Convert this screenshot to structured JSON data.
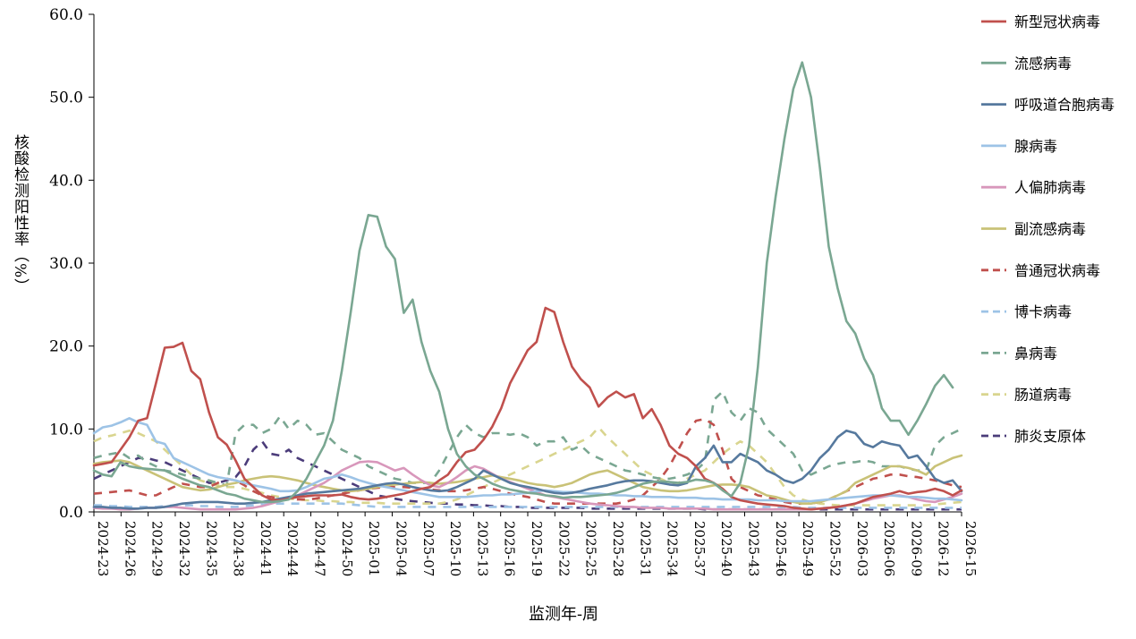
{
  "chart_data": {
    "type": "line",
    "xlabel": "监测年-周",
    "ylabel": "核酸检测阳性率（%）",
    "ylim": [
      0,
      60
    ],
    "yticks": [
      "0.0",
      "10.0",
      "20.0",
      "30.0",
      "40.0",
      "50.0",
      "60.0"
    ],
    "grid": false,
    "legend_position": "right",
    "x_tick_labels": [
      "2024-23",
      "2024-26",
      "2024-29",
      "2024-32",
      "2024-35",
      "2024-38",
      "2024-41",
      "2024-44",
      "2024-47",
      "2024-50",
      "2025-01",
      "2025-04",
      "2025-07",
      "2025-10",
      "2025-13",
      "2025-16",
      "2025-19",
      "2025-22",
      "2025-25",
      "2025-28",
      "2025-31",
      "2025-34",
      "2025-37",
      "2025-40",
      "2025-43",
      "2025-46",
      "2025-49",
      "2025-52",
      "2026-03",
      "2026-06",
      "2026-09",
      "2026-12",
      "2026-15"
    ],
    "series": [
      {
        "name": "新型冠状病毒",
        "color": "#c0504d",
        "dash": false,
        "values": [
          5.6,
          5.8,
          6,
          7.5,
          9,
          11,
          11.3,
          15.5,
          19.8,
          19.9,
          20.4,
          17,
          16,
          12,
          9,
          8.1,
          6.2,
          4,
          3,
          2,
          1.5,
          1.4,
          1.6,
          1.8,
          1.9,
          2,
          2,
          2,
          2.1,
          1.8,
          1.6,
          1.5,
          1.6,
          1.8,
          2,
          2.2,
          2.5,
          2.8,
          3,
          3.8,
          4.5,
          6,
          7.2,
          7.5,
          8.7,
          10.3,
          12.5,
          15.5,
          17.5,
          19.5,
          20.5,
          24.6,
          24.1,
          20.5,
          17.5,
          16,
          15,
          12.7,
          13.8,
          14.5,
          13.8,
          14.2,
          11.3,
          12.4,
          10.5,
          8,
          7,
          6.5,
          5.5,
          4,
          3.5,
          2.8,
          1.8,
          1.4,
          1.2,
          1,
          0.9,
          0.8,
          0.7,
          0.5,
          0.4,
          0.3,
          0.4,
          0.5,
          0.6,
          0.8,
          1,
          1.4,
          1.8,
          2,
          2.2,
          2.5,
          2.2,
          2.4,
          2.5,
          2.8,
          2.5,
          2,
          2.6
        ]
      },
      {
        "name": "流感病毒",
        "color": "#7aa792",
        "dash": false,
        "values": [
          5,
          4.5,
          4.3,
          6,
          5.5,
          5.3,
          5.2,
          5.1,
          5,
          4.5,
          4,
          3.6,
          3.2,
          3,
          2.6,
          2.2,
          2,
          1.6,
          1.4,
          1.2,
          1.2,
          1.3,
          1.5,
          2.5,
          4,
          6,
          8,
          11,
          17,
          24,
          31.5,
          35.8,
          35.6,
          32,
          30.5,
          24,
          25.6,
          20.5,
          17,
          14.5,
          10,
          7,
          5.5,
          4.5,
          4,
          3.4,
          3,
          2.7,
          2.5,
          2.3,
          2.2,
          2,
          1.9,
          1.7,
          1.8,
          1.8,
          1.9,
          2,
          2.1,
          2.3,
          2.6,
          3,
          3.4,
          3.6,
          3.7,
          3.6,
          3.5,
          3.6,
          3.9,
          3.8,
          3.5,
          2.6,
          1.9,
          3.5,
          8,
          17.5,
          30,
          38,
          45,
          51,
          54.2,
          50,
          41.5,
          32,
          27,
          23,
          21.5,
          18.5,
          16.5,
          12.5,
          11,
          11,
          9.3,
          11,
          13,
          15.2,
          16.5,
          15
        ]
      },
      {
        "name": "呼吸道合胞病毒",
        "color": "#56799e",
        "dash": false,
        "values": [
          0.6,
          0.6,
          0.5,
          0.5,
          0.4,
          0.4,
          0.5,
          0.5,
          0.6,
          0.8,
          1,
          1.1,
          1.2,
          1.2,
          1.2,
          1.1,
          1,
          1,
          1.1,
          1.2,
          1.4,
          1.6,
          1.8,
          2,
          2.2,
          2.3,
          2.4,
          2.5,
          2.6,
          2.7,
          2.8,
          3,
          3.2,
          3.4,
          3.5,
          3.3,
          3,
          2.8,
          2.6,
          2.5,
          2.6,
          3,
          3.5,
          4,
          5,
          4.5,
          4,
          3.5,
          3.2,
          3,
          2.8,
          2.5,
          2.3,
          2.2,
          2.3,
          2.5,
          2.8,
          3,
          3.2,
          3.5,
          3.7,
          3.8,
          3.8,
          3.7,
          3.5,
          3.3,
          3.2,
          3.5,
          5.5,
          6.5,
          8,
          6,
          6,
          7,
          6.5,
          6,
          5,
          4.5,
          3.8,
          3.5,
          4,
          5,
          6.5,
          7.5,
          9,
          9.8,
          9.5,
          8.2,
          7.8,
          8.5,
          8.2,
          8,
          6.5,
          6.8,
          5.5,
          4,
          3.5,
          3.8,
          2.5
        ]
      },
      {
        "name": "腺病毒",
        "color": "#9dc3e6",
        "dash": false,
        "values": [
          9.5,
          10.2,
          10.4,
          10.8,
          11.3,
          10.8,
          10.5,
          8.5,
          8.2,
          6.5,
          6,
          5.5,
          5,
          4.5,
          4.2,
          4,
          3.8,
          3.5,
          3.2,
          3,
          2.8,
          2.5,
          2.5,
          2.6,
          3,
          3.5,
          4,
          4.2,
          4.5,
          4.2,
          3.8,
          3.5,
          3.2,
          3,
          2.8,
          2.6,
          2.4,
          2.2,
          2,
          1.8,
          1.8,
          1.8,
          1.8,
          1.9,
          2,
          2,
          2.1,
          2.1,
          2.2,
          2.3,
          2.5,
          2.6,
          2.5,
          2.4,
          2.4,
          2.3,
          2.2,
          2.2,
          2.1,
          2,
          2,
          1.9,
          1.9,
          1.8,
          1.8,
          1.8,
          1.7,
          1.7,
          1.7,
          1.6,
          1.6,
          1.5,
          1.5,
          1.5,
          1.5,
          1.4,
          1.4,
          1.4,
          1.3,
          1.3,
          1.3,
          1.3,
          1.4,
          1.5,
          1.6,
          1.7,
          1.8,
          1.9,
          2,
          2,
          2,
          1.9,
          1.8,
          1.8,
          1.7,
          1.6,
          1.6,
          1.5,
          1.4
        ]
      },
      {
        "name": "人偏肺病毒",
        "color": "#d897bb",
        "dash": false,
        "values": [
          0.5,
          0.4,
          0.4,
          0.3,
          0.3,
          0.4,
          0.5,
          0.5,
          0.6,
          0.6,
          0.5,
          0.4,
          0.3,
          0.3,
          0.3,
          0.3,
          0.3,
          0.4,
          0.5,
          0.7,
          1,
          1.3,
          1.6,
          2,
          2.5,
          3,
          3.5,
          4.2,
          5,
          5.5,
          6,
          6.1,
          6,
          5.5,
          5,
          5.3,
          4.5,
          3.8,
          3.2,
          3,
          3.5,
          4.2,
          5,
          5.5,
          5.2,
          4.6,
          4,
          3.6,
          3.2,
          2.8,
          2.4,
          2,
          1.8,
          1.6,
          1.4,
          1.2,
          1,
          0.9,
          0.8,
          0.7,
          0.6,
          0.6,
          0.5,
          0.5,
          0.5,
          0.4,
          0.4,
          0.4,
          0.4,
          0.4,
          0.3,
          0.3,
          0.3,
          0.3,
          0.3,
          0.3,
          0.3,
          0.3,
          0.3,
          0.3,
          0.3,
          0.3,
          0.4,
          0.5,
          0.6,
          0.8,
          1,
          1.3,
          1.6,
          1.8,
          2,
          2,
          1.8,
          1.5,
          1.3,
          1.2,
          1.5,
          1.8,
          2.2
        ]
      },
      {
        "name": "副流感病毒",
        "color": "#c9c277",
        "dash": false,
        "values": [
          5.8,
          6,
          6.1,
          6.2,
          6,
          5.5,
          5,
          4.5,
          4,
          3.5,
          3,
          2.8,
          2.6,
          2.7,
          3,
          3.3,
          3.5,
          3.8,
          4,
          4.2,
          4.3,
          4.2,
          4,
          3.8,
          3.5,
          3.2,
          3,
          2.8,
          2.6,
          2.5,
          2.6,
          2.8,
          3,
          3.2,
          3.3,
          3.4,
          3.5,
          3.6,
          3.5,
          3.4,
          3.5,
          3.6,
          3.8,
          4,
          4.2,
          4.4,
          4.2,
          4,
          3.8,
          3.5,
          3.3,
          3.2,
          3,
          3.2,
          3.5,
          4,
          4.5,
          4.8,
          5,
          4.5,
          4,
          3.5,
          3,
          2.8,
          2.6,
          2.5,
          2.5,
          2.6,
          2.8,
          3,
          3.2,
          3.3,
          3.3,
          3.2,
          3,
          2.5,
          2,
          1.8,
          1.5,
          1.2,
          1,
          1,
          1.2,
          1.5,
          2,
          2.5,
          3.5,
          4,
          4.5,
          5,
          5.5,
          5.5,
          5.3,
          5,
          4.5,
          5.5,
          6,
          6.5,
          6.8
        ]
      },
      {
        "name": "普通冠状病毒",
        "color": "#c0504d",
        "dash": true,
        "values": [
          2.2,
          2.3,
          2.4,
          2.5,
          2.6,
          2.3,
          2,
          2,
          2.5,
          3,
          3.4,
          3.2,
          3,
          3,
          3.5,
          4,
          3.8,
          3.2,
          2.5,
          2,
          1.8,
          1.6,
          1.6,
          1.5,
          1.5,
          1.6,
          1.8,
          2,
          2.2,
          2.4,
          2.6,
          2.8,
          2.9,
          3,
          3,
          3,
          2.9,
          2.8,
          2.7,
          2.6,
          2.5,
          2.5,
          2.6,
          2.8,
          3,
          2.8,
          2.5,
          2.2,
          2,
          1.8,
          1.5,
          1.2,
          1,
          1,
          1,
          1,
          1,
          1,
          1,
          1,
          1.2,
          1.5,
          2,
          3,
          4,
          5.5,
          7.5,
          9.5,
          11,
          11.2,
          10.5,
          7.5,
          4,
          3,
          2.5,
          2,
          1.8,
          1.5,
          1.2,
          1,
          1,
          1,
          1.2,
          1.5,
          2,
          2.5,
          3,
          3.5,
          4,
          4.2,
          4.5,
          4.5,
          4.3,
          4.2,
          4,
          3.8,
          3.5,
          3.2,
          3
        ]
      },
      {
        "name": "博卡病毒",
        "color": "#9dc3e6",
        "dash": true,
        "values": [
          0.8,
          0.8,
          0.7,
          0.7,
          0.6,
          0.6,
          0.6,
          0.6,
          0.7,
          0.8,
          0.8,
          0.8,
          0.7,
          0.7,
          0.6,
          0.6,
          0.6,
          0.7,
          0.8,
          0.9,
          1,
          1,
          1,
          1,
          1,
          1,
          1,
          1,
          1,
          0.9,
          0.8,
          0.7,
          0.6,
          0.6,
          0.6,
          0.6,
          0.6,
          0.6,
          0.6,
          0.6,
          0.6,
          0.6,
          0.6,
          0.6,
          0.6,
          0.6,
          0.6,
          0.6,
          0.6,
          0.6,
          0.6,
          0.6,
          0.6,
          0.6,
          0.6,
          0.6,
          0.6,
          0.6,
          0.6,
          0.6,
          0.6,
          0.6,
          0.6,
          0.6,
          0.6,
          0.6,
          0.6,
          0.6,
          0.6,
          0.6,
          0.6,
          0.6,
          0.6,
          0.6,
          0.6,
          0.6,
          0.6,
          0.6,
          0.6,
          0.6,
          0.5,
          0.5,
          0.5,
          0.5,
          0.5,
          0.5,
          0.5,
          0.5,
          0.5,
          0.5,
          0.5,
          0.5,
          0.5,
          0.5,
          0.5,
          0.5,
          0.5,
          0.5,
          0.5
        ]
      },
      {
        "name": "鼻病毒",
        "color": "#7aa792",
        "dash": true,
        "values": [
          6.5,
          6.8,
          7,
          7.2,
          6.5,
          6.8,
          6,
          5.5,
          5,
          4.8,
          4.5,
          4.2,
          4,
          3.8,
          3.5,
          3.2,
          9.5,
          10.5,
          10.5,
          9.5,
          10,
          11.5,
          10,
          11,
          10.5,
          9.3,
          9.5,
          8.5,
          7.5,
          7,
          6.5,
          5.5,
          5,
          4.5,
          4,
          3.8,
          3.5,
          3.5,
          3.5,
          5,
          7,
          9,
          10.5,
          9.5,
          9,
          9.5,
          9.5,
          9.3,
          9.5,
          9,
          8,
          8.5,
          8.5,
          9,
          7.5,
          8,
          7,
          6.5,
          6,
          5.5,
          5,
          4.8,
          4.5,
          4.2,
          4,
          4,
          4.2,
          4.5,
          5,
          6,
          13.5,
          14.5,
          12,
          11,
          12.5,
          12,
          10,
          9,
          8,
          7,
          5,
          4.5,
          5,
          5.5,
          5.8,
          6,
          6,
          6.2,
          6,
          5.5,
          5.5,
          5.5,
          5.2,
          5,
          5,
          8,
          9,
          9.5,
          10
        ]
      },
      {
        "name": "肠道病毒",
        "color": "#d9d58f",
        "dash": true,
        "values": [
          8.5,
          9,
          9.2,
          9.5,
          9.8,
          9.5,
          9,
          8.5,
          7.5,
          6.5,
          5.5,
          4.5,
          3.8,
          3.5,
          3.2,
          3,
          3,
          2.8,
          2.5,
          2.3,
          2,
          1.8,
          1.6,
          1.5,
          1.4,
          1.4,
          1.3,
          1.3,
          1.2,
          1.2,
          1.1,
          1.1,
          1.1,
          1,
          1,
          1,
          1,
          1,
          1,
          1,
          1.2,
          1.5,
          2,
          2.5,
          3,
          3.5,
          4,
          4.5,
          5,
          5.5,
          6,
          6.5,
          7,
          7.5,
          8,
          8.5,
          9,
          10.2,
          9,
          8,
          7,
          6,
          5,
          4.5,
          4,
          3.5,
          3.5,
          4,
          4.5,
          5,
          6,
          7,
          7.8,
          8.5,
          8,
          7,
          6,
          4.5,
          3,
          2,
          1.5,
          1.2,
          1,
          0.9,
          0.8,
          0.8,
          0.8,
          0.8,
          0.8,
          0.8,
          0.8,
          0.8,
          0.8,
          0.8,
          0.8,
          0.9,
          1,
          1.1,
          1.2
        ]
      },
      {
        "name": "肺炎支原体",
        "color": "#4b3c7a",
        "dash": true,
        "values": [
          4,
          4.5,
          5,
          5.5,
          6,
          6.5,
          6.5,
          6.2,
          6,
          5.5,
          5,
          4.5,
          4,
          3.5,
          3.5,
          3.8,
          4.2,
          5.5,
          7.5,
          8.5,
          7,
          6.8,
          7.5,
          6.5,
          6,
          5.5,
          5,
          4.5,
          4,
          3.5,
          3,
          2.5,
          2,
          1.8,
          1.6,
          1.4,
          1.3,
          1.2,
          1.1,
          1,
          1,
          0.9,
          0.9,
          0.8,
          0.8,
          0.7,
          0.7,
          0.6,
          0.6,
          0.5,
          0.5,
          0.5,
          0.5,
          0.5,
          0.5,
          0.5,
          0.4,
          0.4,
          0.4,
          0.4,
          0.4,
          0.4,
          0.4,
          0.4,
          0.4,
          0.4,
          0.4,
          0.4,
          0.4,
          0.3,
          0.3,
          0.3,
          0.3,
          0.3,
          0.3,
          0.3,
          0.3,
          0.3,
          0.3,
          0.3,
          0.3,
          0.3,
          0.3,
          0.3,
          0.3,
          0.3,
          0.3,
          0.3,
          0.3,
          0.3,
          0.3,
          0.3,
          0.3,
          0.3,
          0.3,
          0.3,
          0.3,
          0.3,
          0.3
        ]
      }
    ]
  }
}
